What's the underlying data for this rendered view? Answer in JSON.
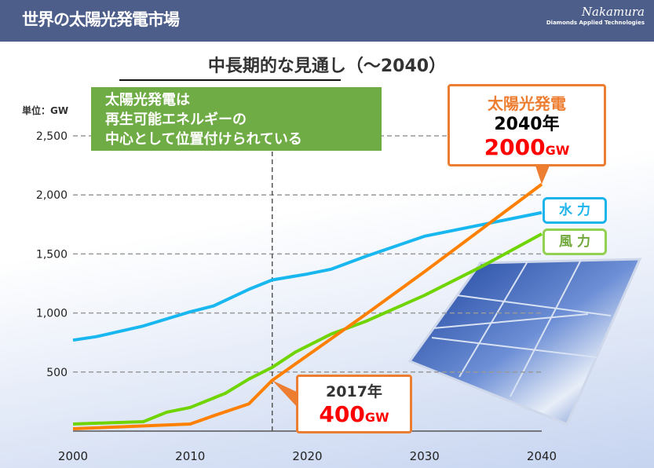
{
  "header": {
    "title": "世界の太陽光発電市場",
    "logo_name": "Nakamura",
    "logo_tagline": "Diamonds Applied Technologies"
  },
  "subtitle": "中長期的な見通し（～2040）",
  "note_box": {
    "lines": [
      "太陽光発電は",
      "再生可能エネルギーの",
      "中心として位置付けられている"
    ]
  },
  "callout_2040": {
    "title": "太陽光発電",
    "year": "2040年",
    "value": "2000",
    "unit": "GW"
  },
  "callout_2017": {
    "year": "2017年",
    "value": "400",
    "unit": "GW"
  },
  "labels": {
    "hydro": "水力",
    "wind": "風力"
  },
  "chart_data": {
    "type": "line",
    "title": "中長期的な見通し（～2040）",
    "ylabel": "単位：GW",
    "xlabel": "",
    "xlim": [
      2000,
      2040
    ],
    "ylim": [
      0,
      2500
    ],
    "yticks": [
      {
        "v": 500,
        "label": "500"
      },
      {
        "v": 1000,
        "label": "1,000"
      },
      {
        "v": 1500,
        "label": "1,500"
      },
      {
        "v": 2000,
        "label": "2,000"
      },
      {
        "v": 2500,
        "label": "2,500"
      }
    ],
    "xticks": [
      2000,
      2010,
      2020,
      2030,
      2040
    ],
    "marker_year": 2017,
    "grid": true,
    "series": [
      {
        "name": "水力",
        "color": "#19b7f0",
        "x": [
          2000,
          2002,
          2006,
          2010,
          2012,
          2015,
          2017,
          2020,
          2022,
          2025,
          2030,
          2035,
          2040
        ],
        "y": [
          770,
          800,
          890,
          1010,
          1060,
          1200,
          1280,
          1330,
          1370,
          1480,
          1650,
          1750,
          1850
        ]
      },
      {
        "name": "風力",
        "color": "#6fd400",
        "x": [
          2000,
          2006,
          2008,
          2010,
          2013,
          2015,
          2017,
          2019,
          2022,
          2025,
          2030,
          2035,
          2040
        ],
        "y": [
          60,
          80,
          160,
          200,
          320,
          440,
          540,
          670,
          820,
          930,
          1150,
          1400,
          1670
        ]
      },
      {
        "name": "太陽光発電",
        "color": "#ff8000",
        "x": [
          2000,
          2005,
          2010,
          2012,
          2015,
          2017,
          2020,
          2025,
          2030,
          2035,
          2040
        ],
        "y": [
          20,
          40,
          60,
          130,
          230,
          430,
          640,
          990,
          1350,
          1720,
          2090
        ]
      }
    ]
  }
}
